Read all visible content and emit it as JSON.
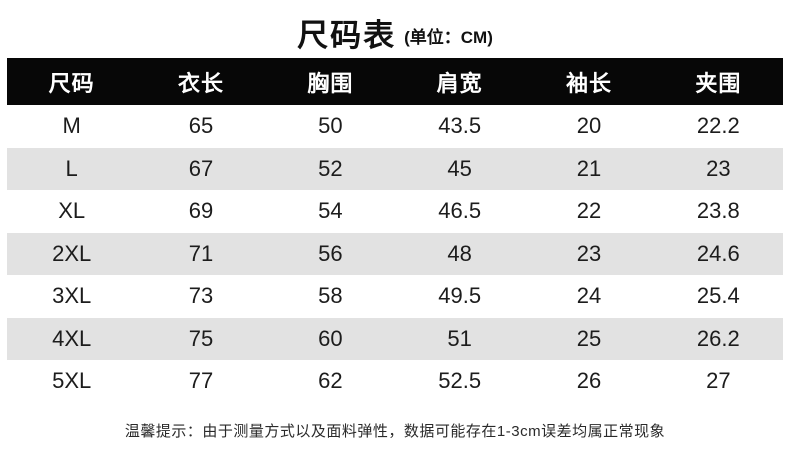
{
  "title": {
    "main": "尺码表",
    "unit": "(单位：CM)"
  },
  "table": {
    "columns": [
      "尺码",
      "衣长",
      "胸围",
      "肩宽",
      "袖长",
      "夹围"
    ],
    "rows": [
      [
        "M",
        "65",
        "50",
        "43.5",
        "20",
        "22.2"
      ],
      [
        "L",
        "67",
        "52",
        "45",
        "21",
        "23"
      ],
      [
        "XL",
        "69",
        "54",
        "46.5",
        "22",
        "23.8"
      ],
      [
        "2XL",
        "71",
        "56",
        "48",
        "23",
        "24.6"
      ],
      [
        "3XL",
        "73",
        "58",
        "49.5",
        "24",
        "25.4"
      ],
      [
        "4XL",
        "75",
        "60",
        "51",
        "25",
        "26.2"
      ],
      [
        "5XL",
        "77",
        "62",
        "52.5",
        "26",
        "27"
      ]
    ]
  },
  "footer": {
    "note": "温馨提示：由于测量方式以及面料弹性，数据可能存在1-3cm误差均属正常现象"
  },
  "colors": {
    "header_bg": "#070707",
    "header_text": "#ffffff",
    "row_alt_bg": "#e2e2e2",
    "body_text": "#1c1c1c"
  }
}
